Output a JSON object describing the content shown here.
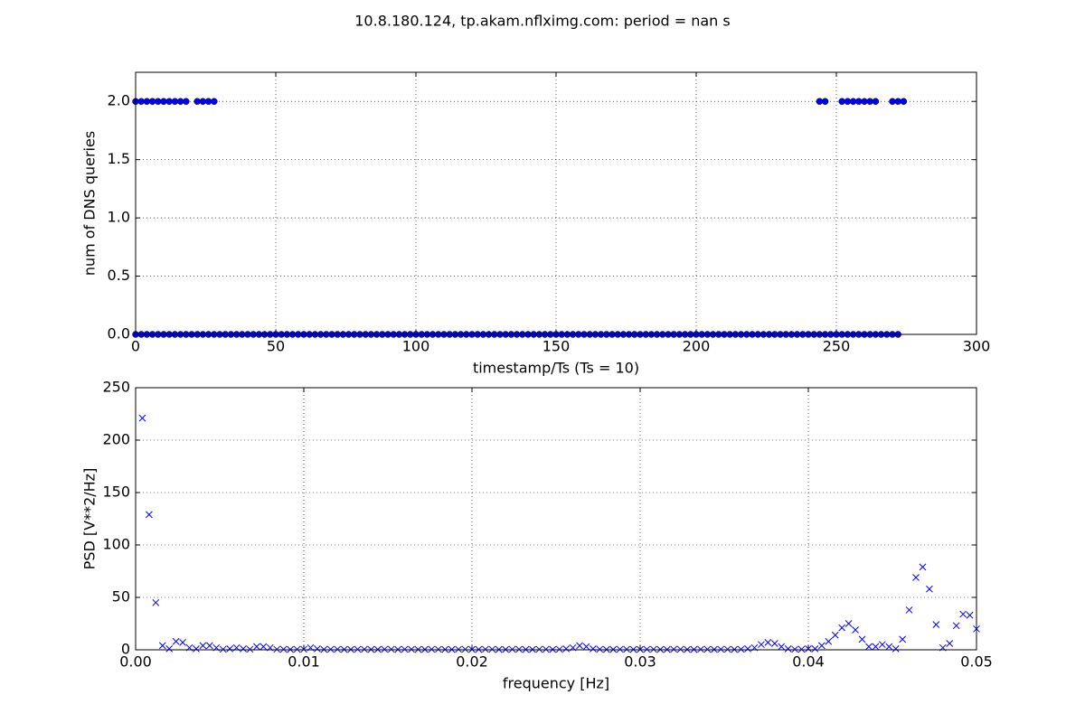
{
  "title": "10.8.180.124, tp.akam.nflximg.com: period = nan s",
  "chart_data": [
    {
      "type": "scatter",
      "marker": "circle",
      "xlabel": "timestamp/Ts (Ts = 10)",
      "ylabel": "num of DNS queries",
      "xlim": [
        0,
        300
      ],
      "ylim": [
        0,
        2.25
      ],
      "grid": true,
      "xticks": [
        0,
        50,
        100,
        150,
        200,
        250,
        300
      ],
      "yticks": [
        {
          "value": 0,
          "label": "0.0"
        },
        {
          "value": 0.5,
          "label": "0.5"
        },
        {
          "value": 1,
          "label": "1.0"
        },
        {
          "value": 1.5,
          "label": "1.5"
        },
        {
          "value": 2,
          "label": "2.0"
        }
      ],
      "series": [
        {
          "color": "#0000ff",
          "x": [
            0,
            2,
            4,
            6,
            8,
            10,
            12,
            14,
            16,
            18,
            20,
            22,
            24,
            26,
            28,
            30,
            32,
            34,
            36,
            38,
            40,
            42,
            44,
            46,
            48,
            50,
            52,
            54,
            56,
            58,
            60,
            62,
            64,
            66,
            68,
            70,
            72,
            74,
            76,
            78,
            80,
            82,
            84,
            86,
            88,
            90,
            92,
            94,
            96,
            98,
            100,
            102,
            104,
            106,
            108,
            110,
            112,
            114,
            116,
            118,
            120,
            122,
            124,
            126,
            128,
            130,
            132,
            134,
            136,
            138,
            140,
            142,
            144,
            146,
            148,
            150,
            152,
            154,
            156,
            158,
            160,
            162,
            164,
            166,
            168,
            170,
            172,
            174,
            176,
            178,
            180,
            182,
            184,
            186,
            188,
            190,
            192,
            194,
            196,
            198,
            200,
            202,
            204,
            206,
            208,
            210,
            212,
            214,
            216,
            218,
            220,
            222,
            224,
            226,
            228,
            230,
            232,
            234,
            236,
            238,
            240,
            242,
            244,
            246,
            248,
            250,
            252,
            254,
            256,
            258,
            260,
            262,
            264,
            266,
            268,
            270,
            272
          ],
          "values": [
            0,
            0,
            0,
            0,
            0,
            0,
            0,
            0,
            0,
            0,
            0,
            0,
            0,
            0,
            0,
            0,
            0,
            0,
            0,
            0,
            0,
            0,
            0,
            0,
            0,
            0,
            0,
            0,
            0,
            0,
            0,
            0,
            0,
            0,
            0,
            0,
            0,
            0,
            0,
            0,
            0,
            0,
            0,
            0,
            0,
            0,
            0,
            0,
            0,
            0,
            0,
            0,
            0,
            0,
            0,
            0,
            0,
            0,
            0,
            0,
            0,
            0,
            0,
            0,
            0,
            0,
            0,
            0,
            0,
            0,
            0,
            0,
            0,
            0,
            0,
            0,
            0,
            0,
            0,
            0,
            0,
            0,
            0,
            0,
            0,
            0,
            0,
            0,
            0,
            0,
            0,
            0,
            0,
            0,
            0,
            0,
            0,
            0,
            0,
            0,
            0,
            0,
            0,
            0,
            0,
            0,
            0,
            0,
            0,
            0,
            0,
            0,
            0,
            0,
            0,
            0,
            0,
            0,
            0,
            0,
            0,
            0,
            0,
            0,
            0,
            0,
            0,
            0,
            0,
            0,
            0,
            0,
            0,
            0,
            0,
            0,
            0
          ]
        },
        {
          "color": "#0000ff",
          "x": [
            0,
            2,
            4,
            6,
            8,
            10,
            12,
            14,
            16,
            18,
            22,
            24,
            26,
            28,
            244,
            246,
            252,
            254,
            256,
            258,
            260,
            262,
            264,
            270,
            272,
            274
          ],
          "values": [
            2,
            2,
            2,
            2,
            2,
            2,
            2,
            2,
            2,
            2,
            2,
            2,
            2,
            2,
            2,
            2,
            2,
            2,
            2,
            2,
            2,
            2,
            2,
            2,
            2,
            2
          ]
        }
      ]
    },
    {
      "type": "scatter",
      "marker": "x",
      "xlabel": "frequency [Hz]",
      "ylabel": "PSD [V**2/Hz]",
      "xlim": [
        0,
        0.05
      ],
      "ylim": [
        0,
        250
      ],
      "grid": true,
      "xticks": [
        {
          "value": 0,
          "label": "0.00"
        },
        {
          "value": 0.01,
          "label": "0.01"
        },
        {
          "value": 0.02,
          "label": "0.02"
        },
        {
          "value": 0.03,
          "label": "0.03"
        },
        {
          "value": 0.04,
          "label": "0.04"
        },
        {
          "value": 0.05,
          "label": "0.05"
        }
      ],
      "yticks": [
        0,
        50,
        100,
        150,
        200,
        250
      ],
      "series": [
        {
          "color": "#0000ff",
          "x": [
            0.0004,
            0.0008,
            0.0012,
            0.0016,
            0.002,
            0.0024,
            0.0028,
            0.0032,
            0.0036,
            0.004,
            0.0044,
            0.0048,
            0.0052,
            0.0056,
            0.006,
            0.0064,
            0.0068,
            0.0072,
            0.0076,
            0.008,
            0.0084,
            0.0088,
            0.0092,
            0.0096,
            0.01,
            0.0104,
            0.0108,
            0.0112,
            0.0116,
            0.012,
            0.0124,
            0.0128,
            0.0132,
            0.0136,
            0.014,
            0.0144,
            0.0148,
            0.0152,
            0.0156,
            0.016,
            0.0164,
            0.0168,
            0.0172,
            0.0176,
            0.018,
            0.0184,
            0.0188,
            0.0192,
            0.0196,
            0.02,
            0.0204,
            0.0208,
            0.0212,
            0.0216,
            0.022,
            0.0224,
            0.0228,
            0.0232,
            0.0236,
            0.024,
            0.0244,
            0.0248,
            0.0252,
            0.0256,
            0.026,
            0.0264,
            0.0268,
            0.0272,
            0.0276,
            0.028,
            0.0284,
            0.0288,
            0.0292,
            0.0296,
            0.03,
            0.0304,
            0.0308,
            0.0312,
            0.0316,
            0.032,
            0.0324,
            0.0328,
            0.0332,
            0.0336,
            0.034,
            0.0344,
            0.0348,
            0.0352,
            0.0356,
            0.036,
            0.0364,
            0.0368,
            0.0372,
            0.0376,
            0.038,
            0.0384,
            0.0388,
            0.0392,
            0.0396,
            0.04,
            0.0404,
            0.0408,
            0.0412,
            0.0416,
            0.042,
            0.0424,
            0.0428,
            0.0432,
            0.0436,
            0.044,
            0.0444,
            0.0448,
            0.0452,
            0.0456,
            0.046,
            0.0464,
            0.0468,
            0.0472,
            0.0476,
            0.048,
            0.0484,
            0.0488,
            0.0492,
            0.0496,
            0.05
          ],
          "values": [
            221,
            129,
            45,
            4,
            1,
            8,
            7,
            2,
            1,
            4,
            4,
            2,
            0.5,
            1,
            2,
            1,
            0.5,
            3,
            3,
            2,
            0.5,
            0.5,
            0.3,
            0.5,
            0.5,
            2,
            1,
            0.3,
            0.5,
            0.5,
            0.3,
            0.3,
            0.5,
            0.5,
            0.3,
            0.3,
            0.5,
            0.5,
            0.3,
            0.5,
            0.5,
            0.3,
            0.3,
            0.5,
            0.5,
            0.3,
            0.3,
            0.5,
            0.5,
            0.3,
            0.3,
            0.5,
            0.5,
            0.3,
            0.3,
            0.5,
            0.5,
            0.3,
            0.3,
            0.5,
            0.5,
            0.3,
            0.5,
            1,
            2,
            4,
            3,
            1,
            0.5,
            0.3,
            0.3,
            0.5,
            0.5,
            0.3,
            0.3,
            0.5,
            0.5,
            0.3,
            0.3,
            0.5,
            0.5,
            0.3,
            0.3,
            0.5,
            0.5,
            0.3,
            0.5,
            0.5,
            0.3,
            0.5,
            1,
            2,
            5,
            7,
            6,
            3,
            1,
            0.5,
            0.5,
            1,
            1,
            4,
            8,
            14,
            21,
            25,
            19,
            10,
            3,
            3,
            5,
            3,
            1,
            10,
            38,
            69,
            79,
            58,
            24,
            2,
            6,
            23,
            34,
            33,
            20
          ]
        }
      ]
    }
  ]
}
